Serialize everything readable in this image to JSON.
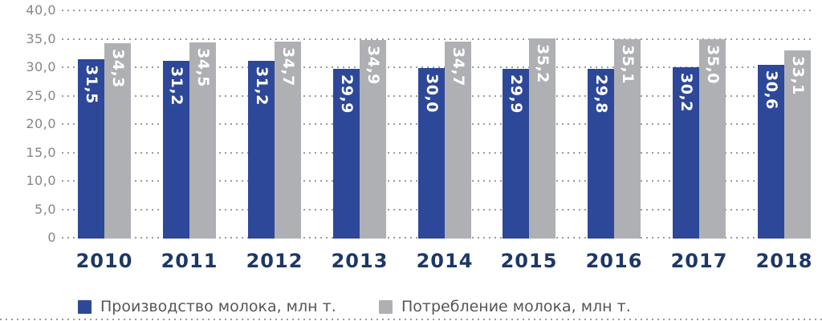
{
  "chart_data": {
    "type": "bar",
    "title": "",
    "categories": [
      "2010",
      "2011",
      "2012",
      "2013",
      "2014",
      "2015",
      "2016",
      "2017",
      "2018"
    ],
    "series": [
      {
        "name": "Производство молока, млн т.",
        "color": "#2d4898",
        "values": [
          31.5,
          31.2,
          31.2,
          29.9,
          30.0,
          29.9,
          29.8,
          30.2,
          30.6
        ],
        "labels": [
          "31,5",
          "31,2",
          "31,2",
          "29,9",
          "30,0",
          "29,9",
          "29,8",
          "30,2",
          "30,6"
        ]
      },
      {
        "name": "Потребление молока, млн т.",
        "color": "#aeb0b3",
        "values": [
          34.3,
          34.5,
          34.7,
          34.9,
          34.7,
          35.2,
          35.1,
          35.0,
          33.1
        ],
        "labels": [
          "34,3",
          "34,5",
          "34,7",
          "34,9",
          "34,7",
          "35,2",
          "35,1",
          "35,0",
          "33,1"
        ]
      }
    ],
    "y_axis": {
      "min": 0,
      "max": 40,
      "tick_step": 5,
      "tick_labels": [
        "40,0",
        "35,0",
        "30,0",
        "25,0",
        "20,0",
        "15,0",
        "10,0",
        "5,0",
        "0"
      ]
    },
    "grid": "dotted-horizontal",
    "value_label_style": "white, bold, rotated 90deg clockwise, inside bar top",
    "legend_position": "bottom",
    "colors": {
      "production_bar": "#2d4898",
      "consumption_bar": "#aeb0b3",
      "year_label": "#1d3866",
      "axis_tick_label": "#85868a",
      "gridline": "#9b9ca0",
      "legend_text": "#55565a",
      "value_label": "#ffffff"
    }
  }
}
